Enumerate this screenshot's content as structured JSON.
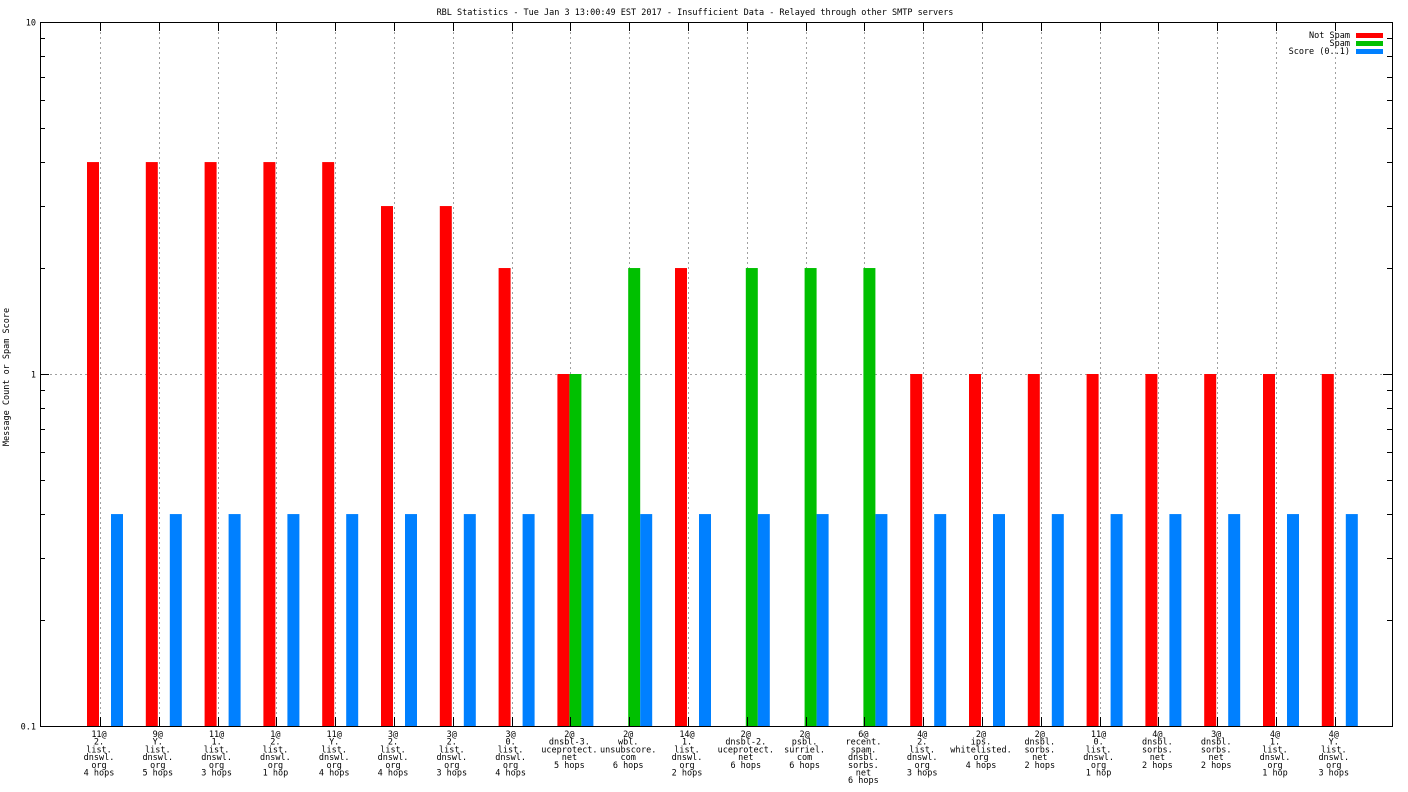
{
  "chart_data": {
    "type": "bar",
    "title": "RBL Statistics - Tue Jan  3 13:00:49 EST 2017 - Insufficient Data - Relayed through other SMTP servers",
    "ylabel": "Message Count or Spam Score",
    "xlabel": "",
    "yscale": "log",
    "ylim": [
      0.1,
      10
    ],
    "ytick_labels": [
      "10",
      "1",
      "0.1"
    ],
    "ytick_values": [
      10,
      1,
      0.1
    ],
    "grid": true,
    "legend_position": "top-right",
    "categories": [
      [
        "11@",
        "2.",
        "list.",
        "dnswl.",
        "org",
        "4 hops"
      ],
      [
        "9@",
        "Y.",
        "list.",
        "dnswl.",
        "org",
        "5 hops"
      ],
      [
        "11@",
        "1.",
        "list.",
        "dnswl.",
        "org",
        "3 hops"
      ],
      [
        "1@",
        "2.",
        "list.",
        "dnswl.",
        "org",
        "1 hop"
      ],
      [
        "11@",
        "Y.",
        "list.",
        "dnswl.",
        "org",
        "4 hops"
      ],
      [
        "3@",
        "2.",
        "list.",
        "dnswl.",
        "org",
        "4 hops"
      ],
      [
        "3@",
        "2.",
        "list.",
        "dnswl.",
        "org",
        "3 hops"
      ],
      [
        "3@",
        "0.",
        "list.",
        "dnswl.",
        "org",
        "4 hops"
      ],
      [
        "2@",
        "dnsbl-3.",
        "uceprotect.",
        "net",
        "5 hops"
      ],
      [
        "2@",
        "wbl.",
        "unsubscore.",
        "com",
        "6 hops"
      ],
      [
        "14@",
        "1.",
        "list.",
        "dnswl.",
        "org",
        "2 hops"
      ],
      [
        "2@",
        "dnsbl-2.",
        "uceprotect.",
        "net",
        "6 hops"
      ],
      [
        "2@",
        "psbl.",
        "surriel.",
        "com",
        "6 hops"
      ],
      [
        "6@",
        "recent.",
        "spam.",
        "dnsbl.",
        "sorbs.",
        "net",
        "6 hops"
      ],
      [
        "4@",
        "2.",
        "list.",
        "dnswl.",
        "org",
        "3 hops"
      ],
      [
        "2@",
        "ips.",
        "whitelisted.",
        "org",
        "4 hops"
      ],
      [
        "2@",
        "dnsbl.",
        "sorbs.",
        "net",
        "2 hops"
      ],
      [
        "11@",
        "0.",
        "list.",
        "dnswl.",
        "org",
        "1 hop"
      ],
      [
        "4@",
        "dnsbl.",
        "sorbs.",
        "net",
        "2 hops"
      ],
      [
        "3@",
        "dnsbl.",
        "sorbs.",
        "net",
        "2 hops"
      ],
      [
        "4@",
        "1.",
        "list.",
        "dnswl.",
        "org",
        "1 hop"
      ],
      [
        "4@",
        "Y.",
        "list.",
        "dnswl.",
        "org",
        "3 hops"
      ]
    ],
    "series": [
      {
        "name": "Not Spam",
        "color": "#ff0000",
        "values": [
          4,
          4,
          4,
          4,
          4,
          3,
          3,
          2,
          1,
          0,
          2,
          0,
          0,
          0,
          1,
          1,
          1,
          1,
          1,
          1,
          1,
          1
        ]
      },
      {
        "name": "Spam",
        "color": "#00c000",
        "values": [
          0,
          0,
          0,
          0,
          0,
          0,
          0,
          0,
          1,
          2,
          0,
          2,
          2,
          2,
          0,
          0,
          0,
          0,
          0,
          0,
          0,
          0
        ]
      },
      {
        "name": "Score (0..1)",
        "color": "#0080ff",
        "values": [
          0.4,
          0.4,
          0.4,
          0.4,
          0.4,
          0.4,
          0.4,
          0.4,
          0.4,
          0.4,
          0.4,
          0.4,
          0.4,
          0.4,
          0.4,
          0.4,
          0.4,
          0.4,
          0.4,
          0.4,
          0.4,
          0.4
        ]
      }
    ]
  }
}
